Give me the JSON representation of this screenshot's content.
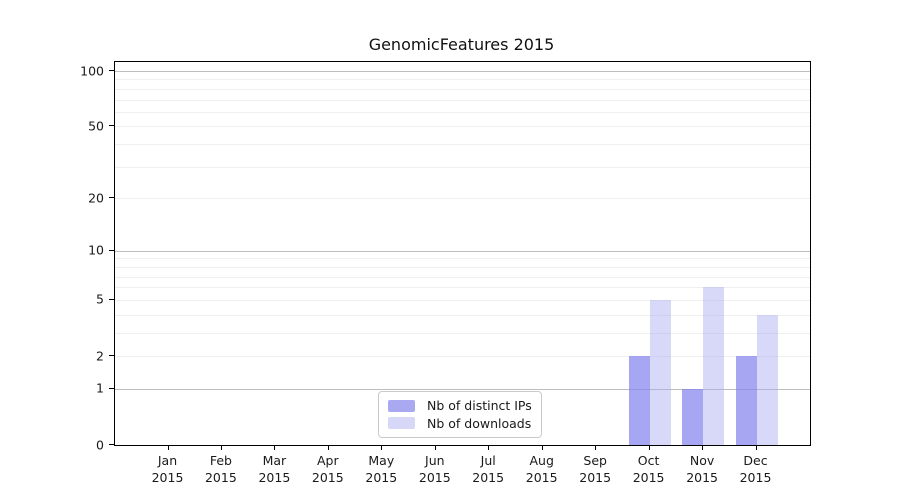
{
  "title": "GenomicFeatures 2015",
  "chart_data": {
    "type": "bar",
    "title": "GenomicFeatures 2015",
    "categories": [
      "Jan",
      "Feb",
      "Mar",
      "Apr",
      "May",
      "Jun",
      "Jul",
      "Aug",
      "Sep",
      "Oct",
      "Nov",
      "Dec"
    ],
    "xticklabels": [
      [
        "Jan",
        "2015"
      ],
      [
        "Feb",
        "2015"
      ],
      [
        "Mar",
        "2015"
      ],
      [
        "Apr",
        "2015"
      ],
      [
        "May",
        "2015"
      ],
      [
        "Jun",
        "2015"
      ],
      [
        "Jul",
        "2015"
      ],
      [
        "Aug",
        "2015"
      ],
      [
        "Sep",
        "2015"
      ],
      [
        "Oct",
        "2015"
      ],
      [
        "Nov",
        "2015"
      ],
      [
        "Dec",
        "2015"
      ]
    ],
    "series": [
      {
        "name": "Nb of distinct IPs",
        "values": [
          0,
          0,
          0,
          0,
          0,
          0,
          0,
          0,
          0,
          2,
          1,
          2
        ],
        "legend_color": "#a9a9f2",
        "fill": "rgba(132, 132, 238, 0.72)"
      },
      {
        "name": "Nb of downloads",
        "values": [
          0,
          0,
          0,
          0,
          0,
          0,
          0,
          0,
          0,
          5,
          6,
          4
        ],
        "legend_color": "#d7d7f8",
        "fill": "rgba(168, 168, 242, 0.45)"
      }
    ],
    "yticks": [
      0,
      1,
      2,
      5,
      10,
      20,
      50,
      100
    ],
    "yscale": "log1p",
    "ylim": [
      0,
      112
    ],
    "xlabel": "",
    "ylabel": "",
    "grid": {
      "minor_values": [
        2,
        3,
        4,
        5,
        6,
        7,
        8,
        9,
        20,
        30,
        40,
        50,
        60,
        70,
        80,
        90
      ],
      "major_values": [
        1,
        10,
        100
      ],
      "minor_color": "#efefef",
      "major_color": "#bdbdbd"
    },
    "legend_position": "bottom-center"
  }
}
